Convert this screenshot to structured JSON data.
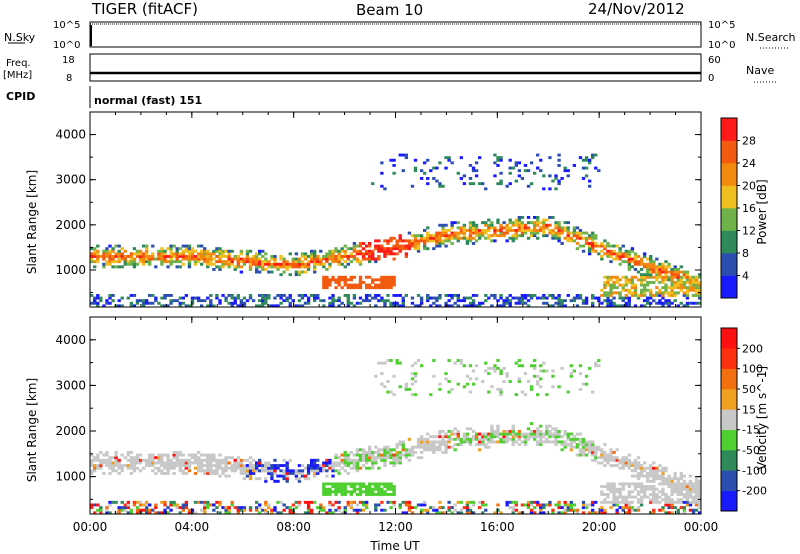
{
  "header": {
    "radar": "TIGER (fitACF)",
    "beam": "Beam 10",
    "date": "24/Nov/2012"
  },
  "summary_panels": {
    "nsky": {
      "label": "N.Sky",
      "ticks": [
        "10^5",
        "10^0"
      ],
      "right_label": "N.Search",
      "right_ticks": [
        "10^5",
        "10^0"
      ]
    },
    "freq": {
      "label_line1": "Freq.",
      "label_line2": "[MHz]",
      "ticks": [
        "18",
        "8"
      ],
      "right_label": "Nave",
      "right_ticks": [
        "60",
        "0"
      ]
    },
    "cpid": {
      "label": "CPID",
      "text": "normal (fast) 151"
    }
  },
  "colors": {
    "power": [
      "#1a1aff",
      "#2b4fb0",
      "#2f8a5a",
      "#6fb24a",
      "#f0c020",
      "#f28a10",
      "#f25a10",
      "#ff1a1a"
    ],
    "velocity": [
      "#1a1aff",
      "#2b4fb0",
      "#2f8a5a",
      "#4fcf30",
      "#c8c8c8",
      "#f0a020",
      "#f27010",
      "#ff3010",
      "#ff1010"
    ]
  },
  "chart_data": [
    {
      "type": "heatmap",
      "title": "Power",
      "xlabel": "Time UT",
      "ylabel": "Slant Range [km]",
      "colorbar_label": "Power [dB]",
      "colorbar_ticks": [
        "28",
        "24",
        "20",
        "16",
        "12",
        "8",
        "4"
      ],
      "x_ticks": [
        "00:00",
        "04:00",
        "08:00",
        "12:00",
        "16:00",
        "20:00",
        "00:00"
      ],
      "y_ticks": [
        "4000",
        "3000",
        "2000",
        "1000"
      ],
      "xlim": [
        0,
        24
      ],
      "ylim": [
        180,
        4500
      ],
      "clim": [
        0,
        32
      ]
    },
    {
      "type": "heatmap",
      "title": "Velocity",
      "xlabel": "Time UT",
      "ylabel": "Slant Range [km]",
      "colorbar_label": "Velocity [m s^-1]",
      "colorbar_ticks": [
        "200",
        "100",
        "50",
        "15",
        "-15",
        "-50",
        "-100",
        "-200"
      ],
      "x_ticks": [
        "00:00",
        "04:00",
        "08:00",
        "12:00",
        "16:00",
        "20:00",
        "00:00"
      ],
      "y_ticks": [
        "4000",
        "3000",
        "2000",
        "1000"
      ],
      "xlim": [
        0,
        24
      ],
      "ylim": [
        180,
        4500
      ],
      "clim": [
        -250,
        250
      ]
    }
  ],
  "footer": {
    "xlabel": "Time UT"
  }
}
